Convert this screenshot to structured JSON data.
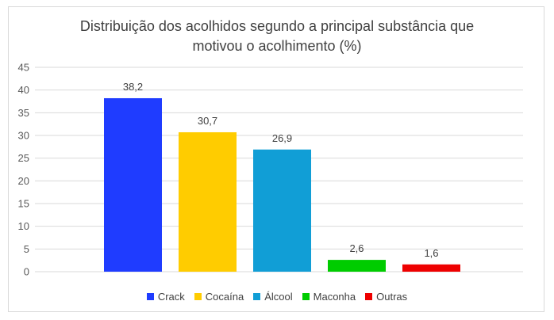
{
  "chart_data": {
    "type": "bar",
    "title_lines": [
      "Distribuição dos acolhidos segundo a principal substância que",
      "motivou o acolhimento (%)"
    ],
    "categories": [
      "Crack",
      "Cocaína",
      "Álcool",
      "Maconha",
      "Outras"
    ],
    "values": [
      38.2,
      30.7,
      26.9,
      2.6,
      1.6
    ],
    "value_labels": [
      "38,2",
      "30,7",
      "26,9",
      "2,6",
      "1,6"
    ],
    "colors": [
      "#1f3cff",
      "#ffcc00",
      "#119ed6",
      "#00cc00",
      "#ee0000"
    ],
    "ylim": [
      0,
      45
    ],
    "yticks": [
      0,
      5,
      10,
      15,
      20,
      25,
      30,
      35,
      40,
      45
    ],
    "grid": true,
    "legend_position": "bottom"
  }
}
